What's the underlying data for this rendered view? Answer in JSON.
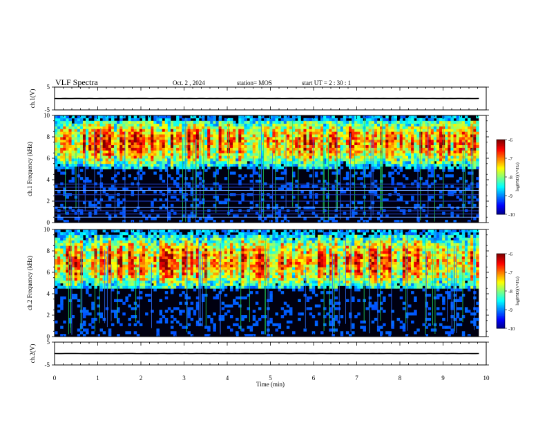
{
  "header": {
    "title": "VLF Spectra",
    "date": "Oct. 2 , 2024",
    "station": "station= MOS",
    "start": "start UT = 2 : 30 : 1"
  },
  "chart_data": [
    {
      "type": "line",
      "ylabel": "ch.1(V)",
      "ylim": [
        -5,
        5
      ],
      "yticks": [
        "5",
        "-5"
      ],
      "series": [
        {
          "x": [
            0,
            9.83
          ],
          "y": [
            0,
            0
          ]
        }
      ]
    },
    {
      "type": "heatmap",
      "ylabel": "ch.1 Frequency (kHz)",
      "ylim": [
        0,
        10
      ],
      "yticks": [
        "10",
        "8",
        "6",
        "4",
        "2",
        "0"
      ],
      "xlim": [
        0,
        10
      ],
      "data_xmax": 9.83,
      "band_center_khz": 7.5,
      "band_extent_khz": [
        5,
        9.5
      ],
      "narrowband_lines_khz": [
        0.5,
        0.8,
        1.1,
        1.4,
        2.0,
        2.6,
        3.0,
        3.3,
        3.6
      ],
      "colorbar": {
        "label": "log(PSD)(V²/Hz)",
        "ticks": [
          "-6",
          "-7",
          "-8",
          "-9",
          "-10"
        ],
        "range": [
          -10,
          -6
        ]
      }
    },
    {
      "type": "heatmap",
      "ylabel": "ch.2 Frequency (kHz)",
      "ylim": [
        0,
        10
      ],
      "yticks": [
        "10",
        "8",
        "6",
        "4",
        "2",
        "0"
      ],
      "xlim": [
        0,
        10
      ],
      "data_xmax": 9.83,
      "band_center_khz": 7,
      "band_extent_khz": [
        4.5,
        9.5
      ],
      "narrowband_lines_khz": [],
      "colorbar": {
        "label": "log(PSD)(V²/Hz)",
        "ticks": [
          "-6",
          "-7",
          "-8",
          "-9",
          "-10"
        ],
        "range": [
          -10,
          -6
        ]
      }
    },
    {
      "type": "line",
      "ylabel": "ch.2(V)",
      "ylim": [
        -5,
        5
      ],
      "yticks": [
        "5",
        "-5"
      ],
      "xlabel": "Time (min)",
      "xticks": [
        "0",
        "1",
        "2",
        "3",
        "4",
        "5",
        "6",
        "7",
        "8",
        "9",
        "10"
      ],
      "series": [
        {
          "x": [
            0,
            9.83
          ],
          "y": [
            0,
            0
          ]
        }
      ]
    }
  ]
}
